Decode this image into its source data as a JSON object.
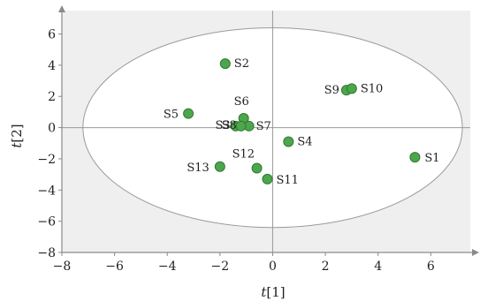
{
  "chart_data": {
    "type": "scatter",
    "title": "",
    "xlabel": "t[1]",
    "ylabel": "t[2]",
    "xlim": [
      -8,
      7.5
    ],
    "ylim": [
      -8,
      7.5
    ],
    "xticks": [
      -8,
      -6,
      -4,
      -2,
      0,
      2,
      4,
      6
    ],
    "yticks": [
      -8,
      -6,
      -4,
      -2,
      0,
      2,
      4,
      6
    ],
    "grid": false,
    "ellipse": {
      "center": [
        0,
        0
      ],
      "semi_axes": [
        7.2,
        6.4
      ]
    },
    "colors": {
      "background": "#efefef",
      "ellipse_fill": "#ffffff",
      "point": "#4da64d",
      "point_edge": "#2e7a2e",
      "axis": "#8a8a8a"
    },
    "points": [
      {
        "label": "S1",
        "x": 5.4,
        "y": -1.9
      },
      {
        "label": "S2",
        "x": -1.8,
        "y": 4.1
      },
      {
        "label": "S3",
        "x": -1.4,
        "y": 0.1
      },
      {
        "label": "S4",
        "x": 0.6,
        "y": -0.9
      },
      {
        "label": "S5",
        "x": -3.2,
        "y": 0.9
      },
      {
        "label": "S6",
        "x": -1.1,
        "y": 0.6
      },
      {
        "label": "S7",
        "x": -0.9,
        "y": 0.1
      },
      {
        "label": "S8",
        "x": -1.2,
        "y": 0.1
      },
      {
        "label": "S9",
        "x": 2.8,
        "y": 2.4
      },
      {
        "label": "S10",
        "x": 3.0,
        "y": 2.5
      },
      {
        "label": "S11",
        "x": -0.2,
        "y": -3.3
      },
      {
        "label": "S12",
        "x": -0.6,
        "y": -2.6
      },
      {
        "label": "S13",
        "x": -2.0,
        "y": -2.5
      }
    ]
  }
}
